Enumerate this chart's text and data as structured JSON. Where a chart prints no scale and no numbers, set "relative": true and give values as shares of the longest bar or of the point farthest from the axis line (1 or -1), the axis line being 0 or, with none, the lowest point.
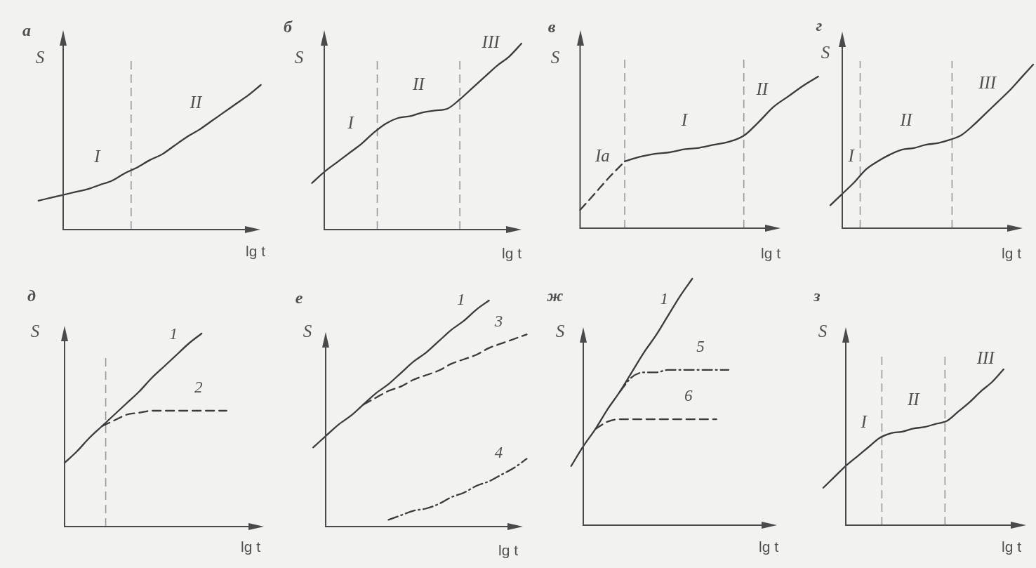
{
  "chart_data": [
    {
      "type": "line",
      "title": "а",
      "xlabel": "lg t",
      "ylabel": "S",
      "relative": true,
      "tick_labels": false,
      "categories": [
        null,
        null,
        null,
        null,
        null,
        null,
        null,
        null,
        null,
        null,
        null,
        null,
        null,
        null,
        null,
        null,
        null,
        null,
        null
      ],
      "series": [
        {
          "color": "#3b3b3b",
          "values": [
            0.2,
            0.22,
            0.24,
            0.26,
            0.28,
            0.31,
            0.34,
            0.39,
            0.43,
            0.48,
            0.52,
            0.58,
            0.64,
            0.69,
            0.75,
            0.81,
            0.87,
            0.93,
            1
          ]
        }
      ],
      "annotations": [
        "I",
        "II"
      ]
    },
    {
      "type": "line",
      "title": "б",
      "xlabel": "lg t",
      "ylabel": "S",
      "relative": true,
      "tick_labels": false,
      "categories": [
        null,
        null,
        null,
        null,
        null,
        null,
        null,
        null,
        null,
        null,
        null,
        null,
        null,
        null,
        null,
        null,
        null,
        null,
        null
      ],
      "series": [
        {
          "color": "#3b3b3b",
          "values": [
            null,
            0.25,
            0.31,
            0.36,
            0.41,
            0.46,
            0.52,
            0.57,
            0.6,
            0.61,
            0.63,
            0.64,
            0.65,
            0.7,
            0.76,
            0.82,
            0.88,
            0.93,
            1
          ]
        }
      ],
      "annotations": [
        "I",
        "II",
        "III"
      ]
    },
    {
      "type": "line",
      "title": "в",
      "xlabel": "lg t",
      "ylabel": "S",
      "relative": true,
      "tick_labels": false,
      "categories": [
        null,
        null,
        null,
        null,
        null,
        null,
        null,
        null,
        null,
        null,
        null,
        null,
        null,
        null,
        null,
        null,
        null,
        null,
        null
      ],
      "series": [
        {
          "color": "#3b3b3b",
          "line_style": "dashed",
          "values": [
            null,
            null,
            0.12,
            0.23,
            0.34,
            0.44,
            null,
            null,
            null,
            null,
            null,
            null,
            null,
            null,
            null,
            null,
            null,
            null,
            null
          ]
        },
        {
          "color": "#3b3b3b",
          "values": [
            null,
            null,
            null,
            null,
            null,
            0.44,
            0.47,
            0.49,
            0.5,
            0.52,
            0.53,
            0.55,
            0.57,
            0.61,
            0.7,
            0.8,
            0.87,
            0.94,
            1
          ]
        }
      ],
      "annotations": [
        "Ia",
        "I",
        "II"
      ]
    },
    {
      "type": "line",
      "title": "г",
      "xlabel": "lg t",
      "ylabel": "S",
      "relative": true,
      "tick_labels": false,
      "categories": [
        null,
        null,
        null,
        null,
        null,
        null,
        null,
        null,
        null,
        null,
        null,
        null,
        null,
        null,
        null,
        null,
        null,
        null,
        null
      ],
      "series": [
        {
          "color": "#3b3b3b",
          "values": [
            null,
            0.14,
            0.21,
            0.28,
            0.36,
            0.41,
            0.45,
            0.48,
            0.49,
            0.51,
            0.52,
            0.54,
            0.57,
            0.63,
            0.7,
            0.77,
            0.84,
            0.92,
            1
          ]
        }
      ],
      "annotations": [
        "I",
        "II",
        "III"
      ]
    },
    {
      "type": "line",
      "title": "д",
      "xlabel": "lg t",
      "ylabel": "S",
      "relative": true,
      "tick_labels": false,
      "categories": [
        null,
        null,
        null,
        null,
        null,
        null,
        null,
        null,
        null,
        null,
        null,
        null,
        null,
        null,
        null,
        null,
        null,
        null,
        null
      ],
      "series": [
        {
          "name": "1",
          "color": "#3b3b3b",
          "values": [
            null,
            null,
            0.33,
            0.39,
            0.46,
            0.52,
            0.58,
            0.64,
            0.7,
            0.77,
            0.83,
            0.89,
            0.95,
            1,
            null,
            null,
            null,
            null,
            null
          ]
        },
        {
          "name": "2",
          "color": "#3b3b3b",
          "line_style": "dashed",
          "values": [
            null,
            null,
            null,
            null,
            null,
            0.52,
            0.55,
            0.58,
            0.59,
            0.6,
            0.6,
            0.6,
            0.6,
            0.6,
            0.6,
            0.6,
            null,
            null,
            null
          ]
        }
      ]
    },
    {
      "type": "line",
      "title": "е",
      "xlabel": "lg t",
      "ylabel": "S",
      "relative": true,
      "tick_labels": false,
      "categories": [
        null,
        null,
        null,
        null,
        null,
        null,
        null,
        null,
        null,
        null,
        null,
        null,
        null,
        null,
        null,
        null,
        null,
        null,
        null
      ],
      "series": [
        {
          "name": "1",
          "color": "#3b3b3b",
          "values": [
            null,
            0.35,
            0.4,
            0.45,
            0.49,
            0.54,
            0.59,
            0.63,
            0.68,
            0.73,
            0.77,
            0.82,
            0.87,
            0.91,
            0.96,
            1,
            null,
            null,
            null
          ]
        },
        {
          "name": "3",
          "color": "#3b3b3b",
          "line_style": "dashed",
          "values": [
            null,
            null,
            null,
            null,
            null,
            0.54,
            0.57,
            0.6,
            0.62,
            0.65,
            0.67,
            0.69,
            0.72,
            0.74,
            0.76,
            0.79,
            0.81,
            0.83,
            0.85
          ]
        },
        {
          "name": "4",
          "color": "#3b3b3b",
          "line_style": "dashdot",
          "values": [
            null,
            null,
            null,
            null,
            null,
            null,
            null,
            0.03,
            0.05,
            0.07,
            0.08,
            0.1,
            0.13,
            0.15,
            0.18,
            0.2,
            0.23,
            0.26,
            0.3
          ]
        }
      ]
    },
    {
      "type": "line",
      "title": "ж",
      "xlabel": "lg t",
      "ylabel": "S",
      "relative": true,
      "tick_labels": false,
      "categories": [
        null,
        null,
        null,
        null,
        null,
        null,
        null,
        null,
        null,
        null,
        null,
        null,
        null,
        null,
        null,
        null,
        null,
        null,
        null
      ],
      "series": [
        {
          "name": "1",
          "color": "#3b3b3b",
          "values": [
            null,
            0.24,
            0.32,
            0.39,
            0.47,
            0.54,
            0.62,
            0.7,
            0.77,
            0.85,
            0.93,
            1,
            null,
            null,
            null,
            null,
            null,
            null,
            null
          ]
        },
        {
          "name": "5",
          "color": "#3b3b3b",
          "line_style": "dashdot",
          "values": [
            null,
            null,
            null,
            null,
            null,
            0.54,
            0.6,
            0.62,
            0.62,
            0.63,
            0.63,
            0.63,
            0.63,
            0.63,
            0.63,
            null,
            null,
            null,
            null
          ]
        },
        {
          "name": "6",
          "color": "#3b3b3b",
          "line_style": "dashed",
          "values": [
            null,
            null,
            null,
            0.39,
            0.42,
            0.43,
            0.43,
            0.43,
            0.43,
            0.43,
            0.43,
            0.43,
            0.43,
            0.43,
            null,
            null,
            null,
            null,
            null
          ]
        }
      ]
    },
    {
      "type": "line",
      "title": "з",
      "xlabel": "lg t",
      "ylabel": "S",
      "relative": true,
      "tick_labels": false,
      "categories": [
        null,
        null,
        null,
        null,
        null,
        null,
        null,
        null,
        null,
        null,
        null,
        null,
        null,
        null,
        null,
        null,
        null,
        null,
        null
      ],
      "series": [
        {
          "color": "#3b3b3b",
          "values": [
            0.24,
            0.31,
            0.38,
            0.44,
            0.5,
            0.56,
            0.59,
            0.6,
            0.62,
            0.63,
            0.65,
            0.67,
            0.73,
            0.79,
            0.86,
            0.92,
            1,
            null,
            null
          ]
        }
      ],
      "annotations": [
        "I",
        "II",
        "III"
      ]
    }
  ]
}
